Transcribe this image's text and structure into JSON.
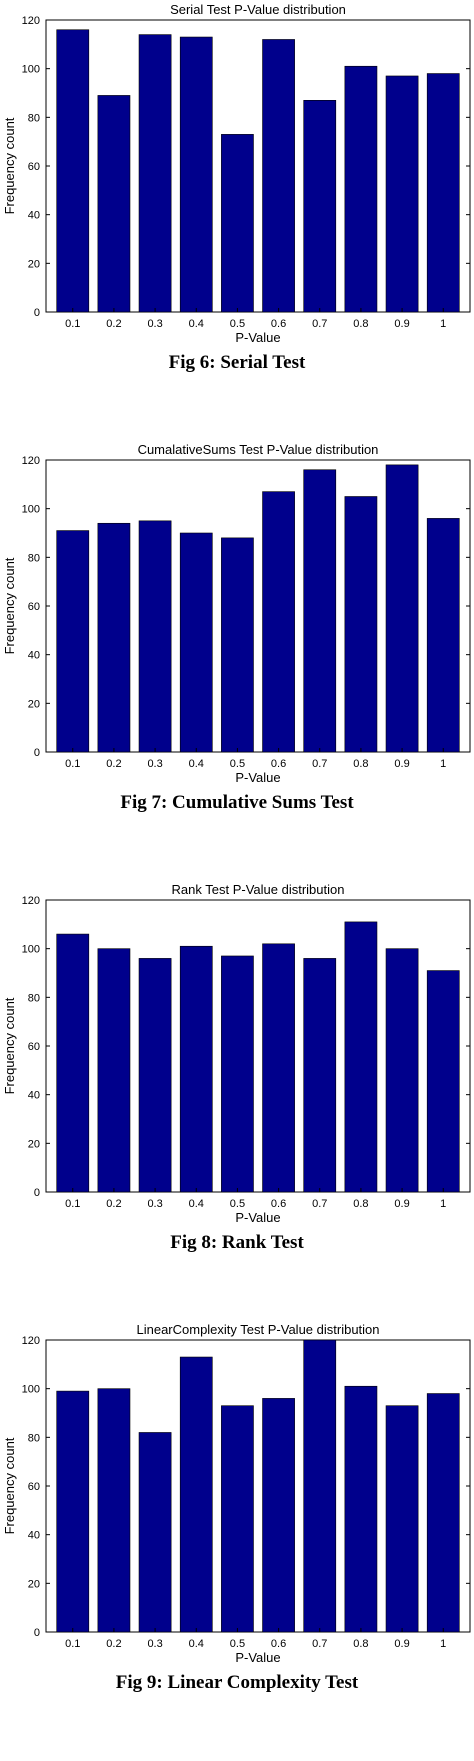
{
  "colors": {
    "bar": "#00008c",
    "axis": "#000000",
    "background": "#ffffff"
  },
  "chart_data": [
    {
      "type": "bar",
      "title": "Serial Test P-Value distribution",
      "xlabel": "P-Value",
      "ylabel": "Frequency count",
      "ylim": [
        0,
        120
      ],
      "yticks": [
        "0",
        "20",
        "40",
        "60",
        "80",
        "100",
        "120"
      ],
      "categories": [
        "0.1",
        "0.2",
        "0.3",
        "0.4",
        "0.5",
        "0.6",
        "0.7",
        "0.8",
        "0.9",
        "1"
      ],
      "values": [
        116,
        89,
        114,
        113,
        73,
        112,
        87,
        101,
        97,
        98
      ],
      "grid": false,
      "caption": "Fig 6: Serial Test"
    },
    {
      "type": "bar",
      "title": "CumalativeSums Test P-Value distribution",
      "xlabel": "P-Value",
      "ylabel": "Frequency count",
      "ylim": [
        0,
        120
      ],
      "yticks": [
        "0",
        "20",
        "40",
        "60",
        "80",
        "100",
        "120"
      ],
      "categories": [
        "0.1",
        "0.2",
        "0.3",
        "0.4",
        "0.5",
        "0.6",
        "0.7",
        "0.8",
        "0.9",
        "1"
      ],
      "values": [
        91,
        94,
        95,
        90,
        88,
        107,
        116,
        105,
        118,
        96
      ],
      "grid": false,
      "caption": "Fig 7: Cumulative Sums Test"
    },
    {
      "type": "bar",
      "title": "Rank Test P-Value distribution",
      "xlabel": "P-Value",
      "ylabel": "Frequency count",
      "ylim": [
        0,
        120
      ],
      "yticks": [
        "0",
        "20",
        "40",
        "60",
        "80",
        "100",
        "120"
      ],
      "categories": [
        "0.1",
        "0.2",
        "0.3",
        "0.4",
        "0.5",
        "0.6",
        "0.7",
        "0.8",
        "0.9",
        "1"
      ],
      "values": [
        106,
        100,
        96,
        101,
        97,
        102,
        96,
        111,
        100,
        91
      ],
      "grid": false,
      "caption": "Fig 8: Rank Test"
    },
    {
      "type": "bar",
      "title": "LinearComplexity Test P-Value distribution",
      "xlabel": "P-Value",
      "ylabel": "Frequency count",
      "ylim": [
        0,
        120
      ],
      "yticks": [
        "0",
        "20",
        "40",
        "60",
        "80",
        "100",
        "120"
      ],
      "categories": [
        "0.1",
        "0.2",
        "0.3",
        "0.4",
        "0.5",
        "0.6",
        "0.7",
        "0.8",
        "0.9",
        "1"
      ],
      "values": [
        99,
        100,
        82,
        113,
        93,
        96,
        120,
        101,
        93,
        98
      ],
      "grid": false,
      "caption": "Fig 9: Linear Complexity Test"
    }
  ]
}
